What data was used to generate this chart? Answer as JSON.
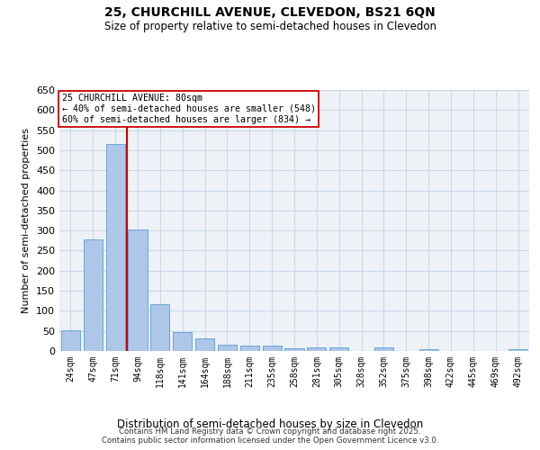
{
  "title_line1": "25, CHURCHILL AVENUE, CLEVEDON, BS21 6QN",
  "title_line2": "Size of property relative to semi-detached houses in Clevedon",
  "xlabel": "Distribution of semi-detached houses by size in Clevedon",
  "ylabel": "Number of semi-detached properties",
  "categories": [
    "24sqm",
    "47sqm",
    "71sqm",
    "94sqm",
    "118sqm",
    "141sqm",
    "164sqm",
    "188sqm",
    "211sqm",
    "235sqm",
    "258sqm",
    "281sqm",
    "305sqm",
    "328sqm",
    "352sqm",
    "375sqm",
    "398sqm",
    "422sqm",
    "445sqm",
    "469sqm",
    "492sqm"
  ],
  "values": [
    52,
    279,
    515,
    302,
    117,
    47,
    31,
    16,
    13,
    14,
    6,
    9,
    9,
    0,
    8,
    0,
    5,
    0,
    0,
    0,
    5
  ],
  "bar_color": "#aec6e8",
  "bar_edge_color": "#5a9fd4",
  "vline_x": 2.5,
  "vline_color": "#cc0000",
  "annotation_title": "25 CHURCHILL AVENUE: 80sqm",
  "annotation_line2": "← 40% of semi-detached houses are smaller (548)",
  "annotation_line3": "60% of semi-detached houses are larger (834) →",
  "annotation_box_color": "#cc0000",
  "ylim": [
    0,
    650
  ],
  "yticks": [
    0,
    50,
    100,
    150,
    200,
    250,
    300,
    350,
    400,
    450,
    500,
    550,
    600,
    650
  ],
  "grid_color": "#c8d8e8",
  "background_color": "#eef2f7",
  "footer_line1": "Contains HM Land Registry data © Crown copyright and database right 2025.",
  "footer_line2": "Contains public sector information licensed under the Open Government Licence v3.0."
}
